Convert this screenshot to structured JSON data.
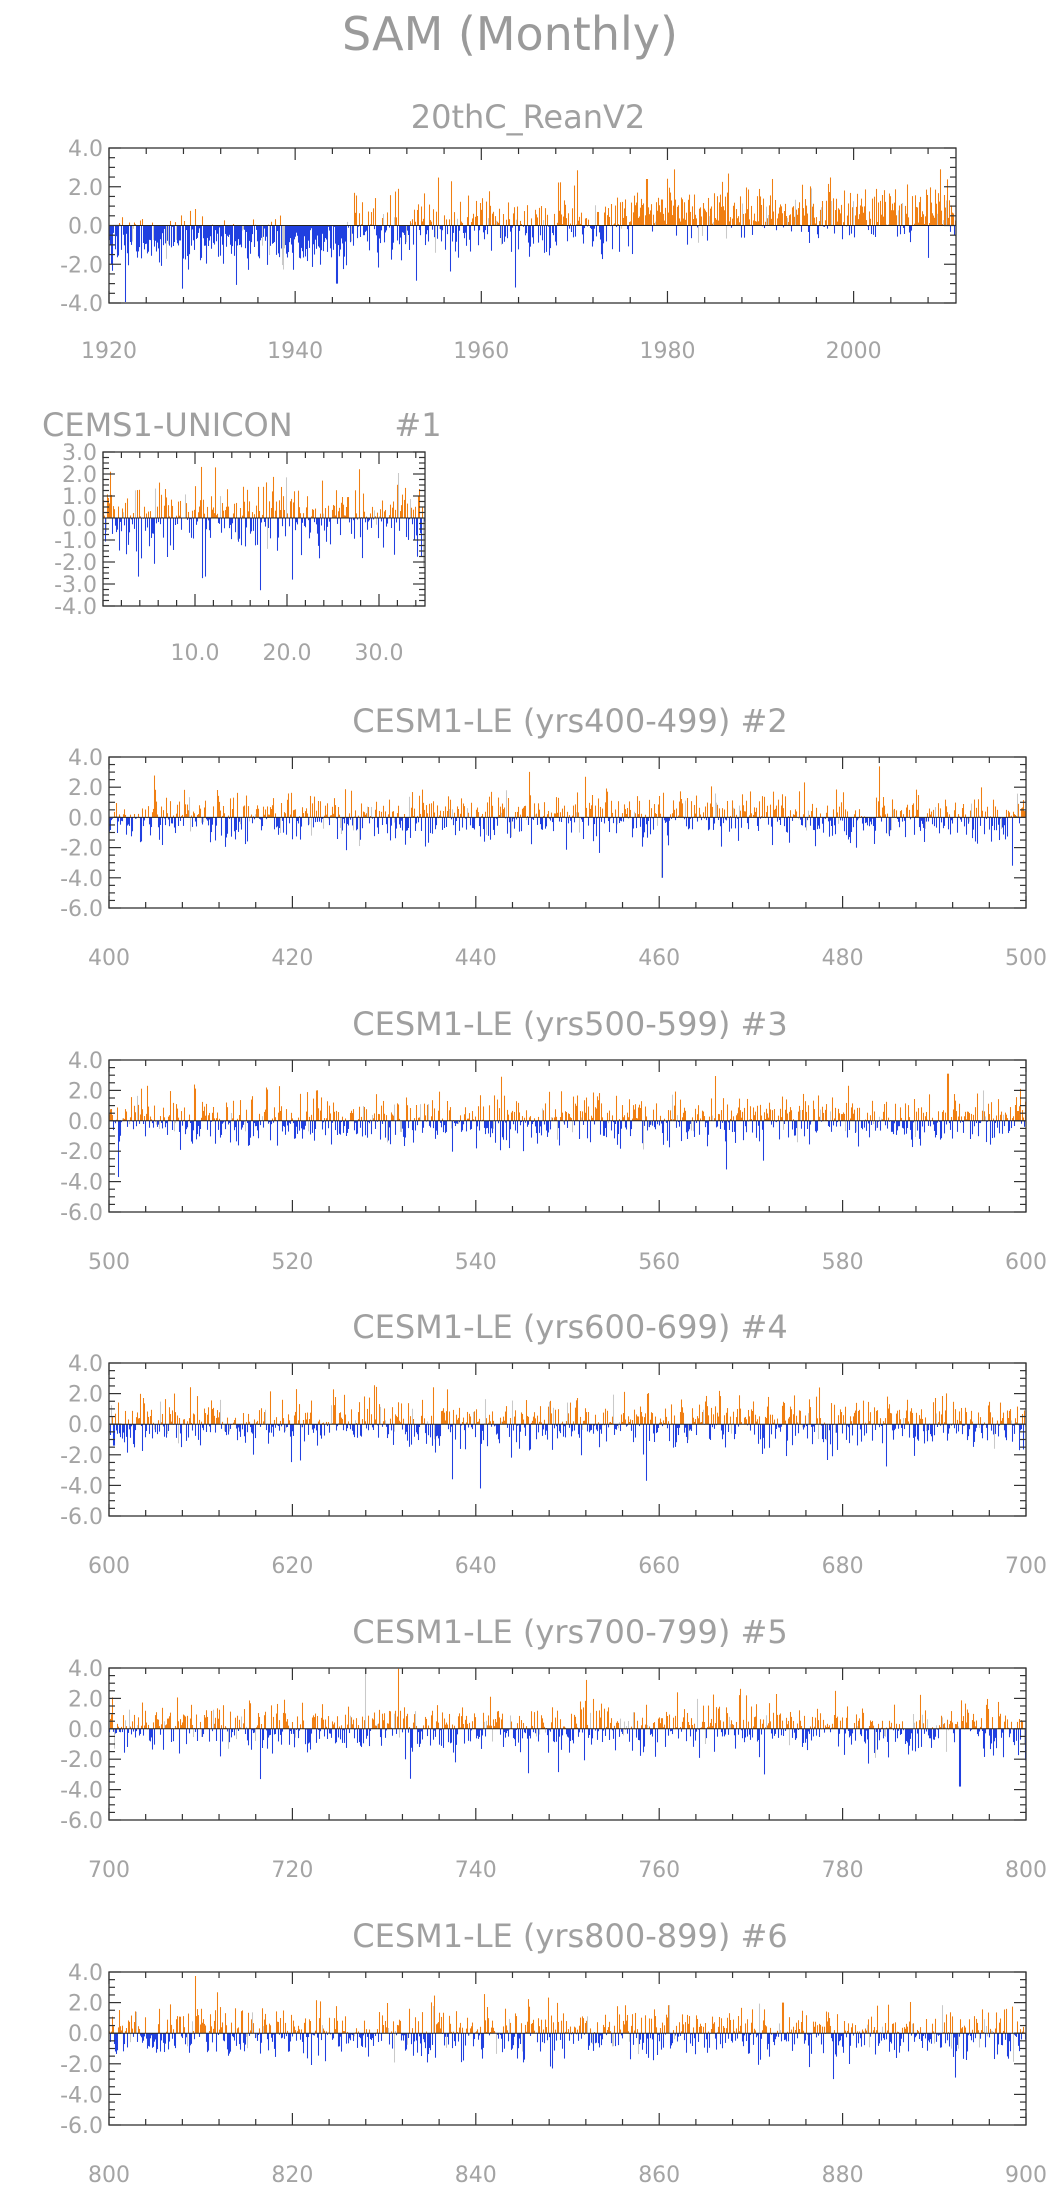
{
  "figure": {
    "title": "SAM (Monthly)"
  },
  "colors": {
    "positive": "#f07f12",
    "negative": "#2040e0",
    "faint": "#c9c9c9"
  },
  "chart_data": [
    {
      "type": "bar",
      "title": "20thC_ReanV2",
      "xlim": [
        1920,
        2011
      ],
      "ylim": [
        -4.0,
        4.0
      ],
      "xticks": [
        1920,
        1940,
        1960,
        1980,
        2000
      ],
      "yticks": [
        -4.0,
        -2.0,
        0.0,
        2.0,
        4.0
      ],
      "xtick_labels": [
        "1920",
        "1940",
        "1960",
        "1980",
        "2000"
      ],
      "ytick_labels": [
        "-4.0",
        "-2.0",
        "0.0",
        "2.0",
        "4.0"
      ],
      "series_note": "monthly index, positive orange / negative blue",
      "segments": [
        {
          "x0": 1920,
          "x1": 1946,
          "mean": -0.9,
          "amp": 0.9
        },
        {
          "x0": 1946,
          "x1": 1975,
          "mean": 0.0,
          "amp": 1.1
        },
        {
          "x0": 1975,
          "x1": 2011,
          "mean": 0.7,
          "amp": 1.0
        }
      ],
      "extremes": [
        {
          "x": 1944.5,
          "y": -3.0
        },
        {
          "x": 1963.7,
          "y": -3.2
        },
        {
          "x": 1977.8,
          "y": 2.4
        },
        {
          "x": 2009.3,
          "y": 2.9
        }
      ]
    },
    {
      "type": "bar",
      "title": "CEMS1-UNICON          #1",
      "xlim": [
        0,
        35
      ],
      "ylim": [
        -4.0,
        3.0
      ],
      "xticks": [
        10,
        20,
        30
      ],
      "yticks": [
        -4.0,
        -3.0,
        -2.0,
        -1.0,
        0.0,
        1.0,
        2.0,
        3.0
      ],
      "xtick_labels": [
        "10.0",
        "20.0",
        "30.0"
      ],
      "ytick_labels": [
        "-4.0",
        "-3.0",
        "-2.0",
        "-1.0",
        "0.0",
        "1.0",
        "2.0",
        "3.0"
      ],
      "segments": [
        {
          "x0": 0,
          "x1": 35,
          "mean": 0.0,
          "amp": 1.1
        }
      ],
      "extremes": [
        {
          "x": 12.2,
          "y": 2.3
        },
        {
          "x": 20.6,
          "y": -2.8
        }
      ]
    },
    {
      "type": "bar",
      "title": "CESM1-LE (yrs400-499) #2",
      "xlim": [
        400,
        500
      ],
      "ylim": [
        -6.0,
        4.0
      ],
      "xticks": [
        400,
        420,
        440,
        460,
        480,
        500
      ],
      "yticks": [
        -6.0,
        -4.0,
        -2.0,
        0.0,
        2.0,
        4.0
      ],
      "xtick_labels": [
        "400",
        "420",
        "440",
        "460",
        "480",
        "500"
      ],
      "ytick_labels": [
        "-6.0",
        "-4.0",
        "-2.0",
        "0.0",
        "2.0",
        "4.0"
      ],
      "segments": [
        {
          "x0": 400,
          "x1": 500,
          "mean": 0.0,
          "amp": 1.1
        }
      ],
      "extremes": [
        {
          "x": 460.3,
          "y": -4.0
        },
        {
          "x": 498.5,
          "y": -3.2
        }
      ]
    },
    {
      "type": "bar",
      "title": "CESM1-LE (yrs500-599) #3",
      "xlim": [
        500,
        600
      ],
      "ylim": [
        -6.0,
        4.0
      ],
      "xticks": [
        500,
        520,
        540,
        560,
        580,
        600
      ],
      "yticks": [
        -6.0,
        -4.0,
        -2.0,
        0.0,
        2.0,
        4.0
      ],
      "xtick_labels": [
        "500",
        "520",
        "540",
        "560",
        "580",
        "600"
      ],
      "ytick_labels": [
        "-6.0",
        "-4.0",
        "-2.0",
        "0.0",
        "2.0",
        "4.0"
      ],
      "segments": [
        {
          "x0": 500,
          "x1": 600,
          "mean": 0.0,
          "amp": 1.1
        }
      ],
      "extremes": [
        {
          "x": 501.0,
          "y": -3.7
        },
        {
          "x": 542.8,
          "y": 2.9
        },
        {
          "x": 567.3,
          "y": -3.2
        },
        {
          "x": 591.5,
          "y": 3.1
        }
      ]
    },
    {
      "type": "bar",
      "title": "CESM1-LE (yrs600-699) #4",
      "xlim": [
        600,
        700
      ],
      "ylim": [
        -6.0,
        4.0
      ],
      "xticks": [
        600,
        620,
        640,
        660,
        680,
        700
      ],
      "yticks": [
        -6.0,
        -4.0,
        -2.0,
        0.0,
        2.0,
        4.0
      ],
      "xtick_labels": [
        "600",
        "620",
        "640",
        "660",
        "680",
        "700"
      ],
      "ytick_labels": [
        "-6.0",
        "-4.0",
        "-2.0",
        "0.0",
        "2.0",
        "4.0"
      ],
      "segments": [
        {
          "x0": 600,
          "x1": 700,
          "mean": 0.0,
          "amp": 1.1
        }
      ],
      "extremes": [
        {
          "x": 637.5,
          "y": -3.6
        },
        {
          "x": 640.5,
          "y": -4.2
        },
        {
          "x": 677.5,
          "y": 2.4
        }
      ]
    },
    {
      "type": "bar",
      "title": "CESM1-LE (yrs700-799) #5",
      "xlim": [
        700,
        800
      ],
      "ylim": [
        -6.0,
        4.0
      ],
      "xticks": [
        700,
        720,
        740,
        760,
        780,
        800
      ],
      "yticks": [
        -6.0,
        -4.0,
        -2.0,
        0.0,
        2.0,
        4.0
      ],
      "xtick_labels": [
        "700",
        "720",
        "740",
        "760",
        "780",
        "800"
      ],
      "ytick_labels": [
        "-6.0",
        "-4.0",
        "-2.0",
        "0.0",
        "2.0",
        "4.0"
      ],
      "segments": [
        {
          "x0": 700,
          "x1": 800,
          "mean": 0.0,
          "amp": 1.1
        }
      ],
      "extremes": [
        {
          "x": 762.0,
          "y": 2.4
        },
        {
          "x": 769.5,
          "y": 2.2
        },
        {
          "x": 771.5,
          "y": -3.0
        },
        {
          "x": 792.8,
          "y": -3.8
        }
      ]
    },
    {
      "type": "bar",
      "title": "CESM1-LE (yrs800-899) #6",
      "xlim": [
        800,
        900
      ],
      "ylim": [
        -6.0,
        4.0
      ],
      "xticks": [
        800,
        820,
        840,
        860,
        880,
        900
      ],
      "yticks": [
        -6.0,
        -4.0,
        -2.0,
        0.0,
        2.0,
        4.0
      ],
      "xtick_labels": [
        "800",
        "820",
        "840",
        "860",
        "880",
        "900"
      ],
      "ytick_labels": [
        "-6.0",
        "-4.0",
        "-2.0",
        "0.0",
        "2.0",
        "4.0"
      ],
      "segments": [
        {
          "x0": 800,
          "x1": 900,
          "mean": 0.0,
          "amp": 1.1
        }
      ],
      "extremes": [
        {
          "x": 873.5,
          "y": 2.0
        },
        {
          "x": 879.0,
          "y": -3.0
        },
        {
          "x": 892.3,
          "y": -2.9
        }
      ]
    }
  ]
}
